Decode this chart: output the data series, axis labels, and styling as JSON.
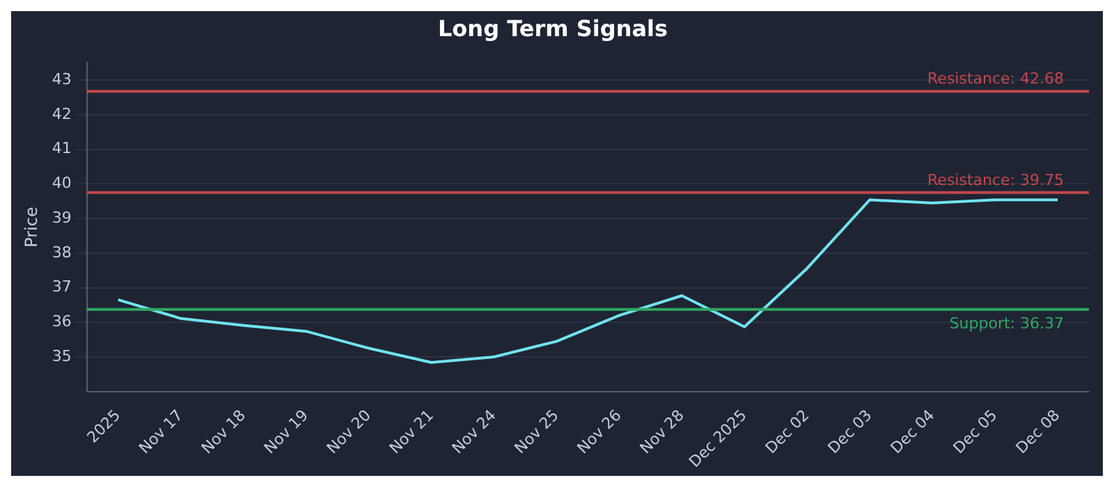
{
  "chart_data": {
    "type": "line",
    "title": "Long Term Signals",
    "ylabel": "Price",
    "categories": [
      "2025",
      "Nov 17",
      "Nov 18",
      "Nov 19",
      "Nov 20",
      "Nov 21",
      "Nov 24",
      "Nov 25",
      "Nov 26",
      "Nov 28",
      "Dec 2025",
      "Dec 02",
      "Dec 03",
      "Dec 04",
      "Dec 05",
      "Dec 08"
    ],
    "series": [
      {
        "color": "#6fe3ef",
        "values": [
          36.65,
          36.11,
          35.91,
          35.74,
          35.25,
          34.84,
          35.0,
          35.45,
          36.2,
          36.77,
          35.87,
          37.56,
          39.54,
          39.45,
          39.54,
          39.54
        ]
      }
    ],
    "ylim": [
      34,
      43.5
    ],
    "yticks": [
      35,
      36,
      37,
      38,
      39,
      40,
      41,
      42,
      43
    ],
    "grid": "y",
    "legend": false,
    "marker": "none",
    "line_style": "solid",
    "ref_lines": [
      {
        "axis": "y",
        "value": 42.68,
        "label": "Resistance: 42.68",
        "color": "#c2474b"
      },
      {
        "axis": "y",
        "value": 39.75,
        "label": "Resistance: 39.75",
        "color": "#c2474b"
      },
      {
        "axis": "y",
        "value": 36.37,
        "label": "Support: 36.37",
        "color": "#2ea862"
      }
    ]
  }
}
